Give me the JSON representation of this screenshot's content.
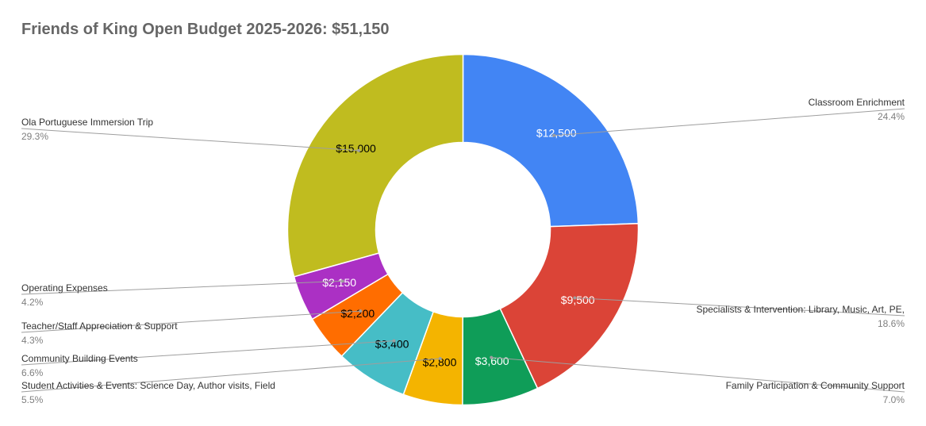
{
  "chart_data": {
    "type": "pie",
    "donut": true,
    "title": "Friends of King Open Budget 2025-2026: $51,150",
    "legend": "none",
    "slices": [
      {
        "label": "Classroom Enrichment",
        "value": 12500,
        "value_label": "$12,500",
        "percent_label": "24.4%",
        "color": "#4285f4",
        "value_text_color": "#ffffff"
      },
      {
        "label": "Specialists & Intervention: Library, Music, Art, PE,",
        "value": 9500,
        "value_label": "$9,500",
        "percent_label": "18.6%",
        "color": "#db4437",
        "value_text_color": "#ffffff"
      },
      {
        "label": "Family Participation & Community Support",
        "value": 3600,
        "value_label": "$3,600",
        "percent_label": "7.0%",
        "color": "#0f9d58",
        "value_text_color": "#ffffff"
      },
      {
        "label": "Student Activities & Events:  Science Day, Author visits, Field",
        "value": 2800,
        "value_label": "$2,800",
        "percent_label": "5.5%",
        "color": "#f4b400",
        "value_text_color": "#000000"
      },
      {
        "label": "Community Building Events",
        "value": 3400,
        "value_label": "$3,400",
        "percent_label": "6.6%",
        "color": "#46bdc6",
        "value_text_color": "#000000"
      },
      {
        "label": "Teacher/Staff Appreciation & Support",
        "value": 2200,
        "value_label": "$2,200",
        "percent_label": "4.3%",
        "color": "#ff6d00",
        "value_text_color": "#000000"
      },
      {
        "label": "Operating Expenses",
        "value": 2150,
        "value_label": "$2,150",
        "percent_label": "4.2%",
        "color": "#ab30c4",
        "value_text_color": "#ffffff"
      },
      {
        "label": "Ola Portuguese Immersion Trip",
        "value": 15000,
        "value_label": "$15,000",
        "percent_label": "29.3%",
        "color": "#c0bc1f",
        "value_text_color": "#000000"
      }
    ]
  }
}
